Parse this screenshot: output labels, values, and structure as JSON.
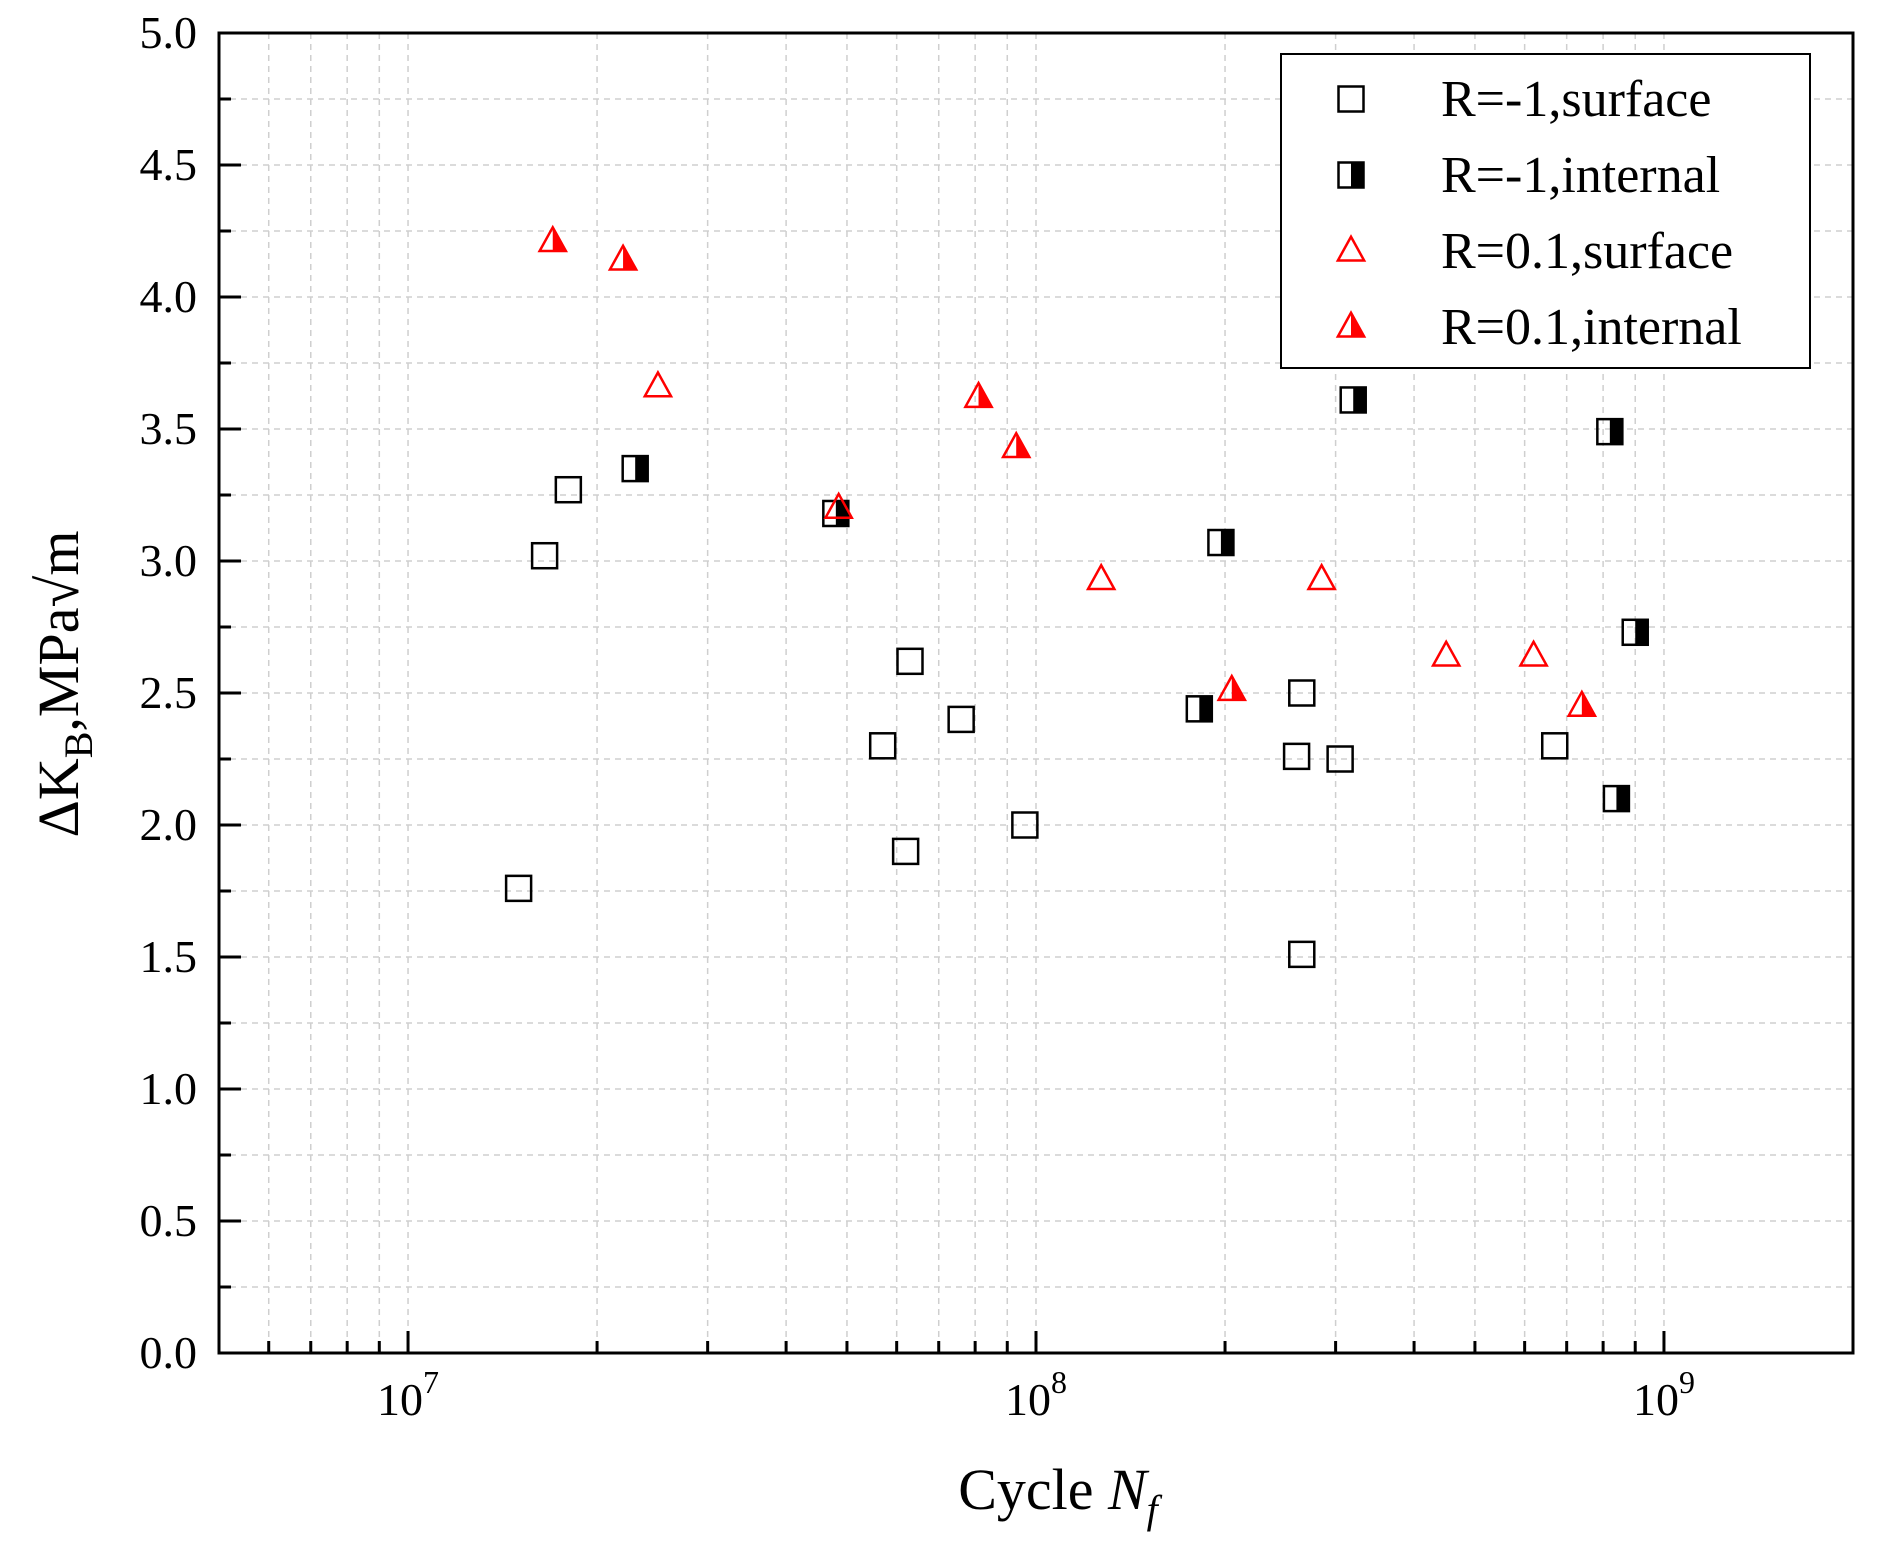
{
  "chart_data": {
    "type": "scatter",
    "x_scale": "log",
    "xlim": [
      5000000,
      2000000000
    ],
    "ylim": [
      0,
      5.0
    ],
    "grid": true,
    "legend_position": "top-right",
    "xlabel": {
      "main": "Cycle ",
      "var": "N",
      "sub": "f"
    },
    "ylabel": {
      "main": "ΔK",
      "sub": "B",
      "rest": ",MPa√m"
    },
    "x_ticks": [
      {
        "value": 10000000,
        "base": "10",
        "exp": "7"
      },
      {
        "value": 100000000,
        "base": "10",
        "exp": "8"
      },
      {
        "value": 1000000000,
        "base": "10",
        "exp": "9"
      }
    ],
    "y_ticks": [
      "0.0",
      "0.5",
      "1.0",
      "1.5",
      "2.0",
      "2.5",
      "3.0",
      "3.5",
      "4.0",
      "4.5",
      "5.0"
    ],
    "series": [
      {
        "name": "R=-1,surface",
        "marker": "square-open",
        "color": "#000000",
        "points": [
          [
            15000000,
            1.76
          ],
          [
            16500000,
            3.02
          ],
          [
            18000000,
            3.27
          ],
          [
            57000000,
            2.3
          ],
          [
            62000000,
            1.9
          ],
          [
            63000000,
            2.62
          ],
          [
            76000000,
            2.4
          ],
          [
            96000000,
            2.0
          ],
          [
            260000000,
            2.26
          ],
          [
            265000000,
            2.5
          ],
          [
            265000000,
            1.51
          ],
          [
            305000000,
            2.25
          ],
          [
            670000000,
            2.3
          ]
        ]
      },
      {
        "name": "R=-1,internal",
        "marker": "square-half",
        "color": "#000000",
        "points": [
          [
            23000000,
            3.35
          ],
          [
            48000000,
            3.18
          ],
          [
            182000000,
            2.44
          ],
          [
            197000000,
            3.07
          ],
          [
            320000000,
            3.61
          ],
          [
            820000000,
            3.49
          ],
          [
            840000000,
            2.1
          ],
          [
            900000000,
            2.73
          ]
        ]
      },
      {
        "name": "R=0.1,surface",
        "marker": "triangle-open",
        "color": "#ff0000",
        "points": [
          [
            25000000,
            3.66
          ],
          [
            48500000,
            3.2
          ],
          [
            127000000,
            2.93
          ],
          [
            285000000,
            2.93
          ],
          [
            450000000,
            2.64
          ],
          [
            620000000,
            2.64
          ]
        ]
      },
      {
        "name": "R=0.1,internal",
        "marker": "triangle-half",
        "color": "#ff0000",
        "points": [
          [
            17000000,
            4.21
          ],
          [
            22000000,
            4.14
          ],
          [
            81000000,
            3.62
          ],
          [
            93000000,
            3.43
          ],
          [
            205000000,
            2.51
          ],
          [
            740000000,
            2.45
          ]
        ]
      }
    ]
  }
}
